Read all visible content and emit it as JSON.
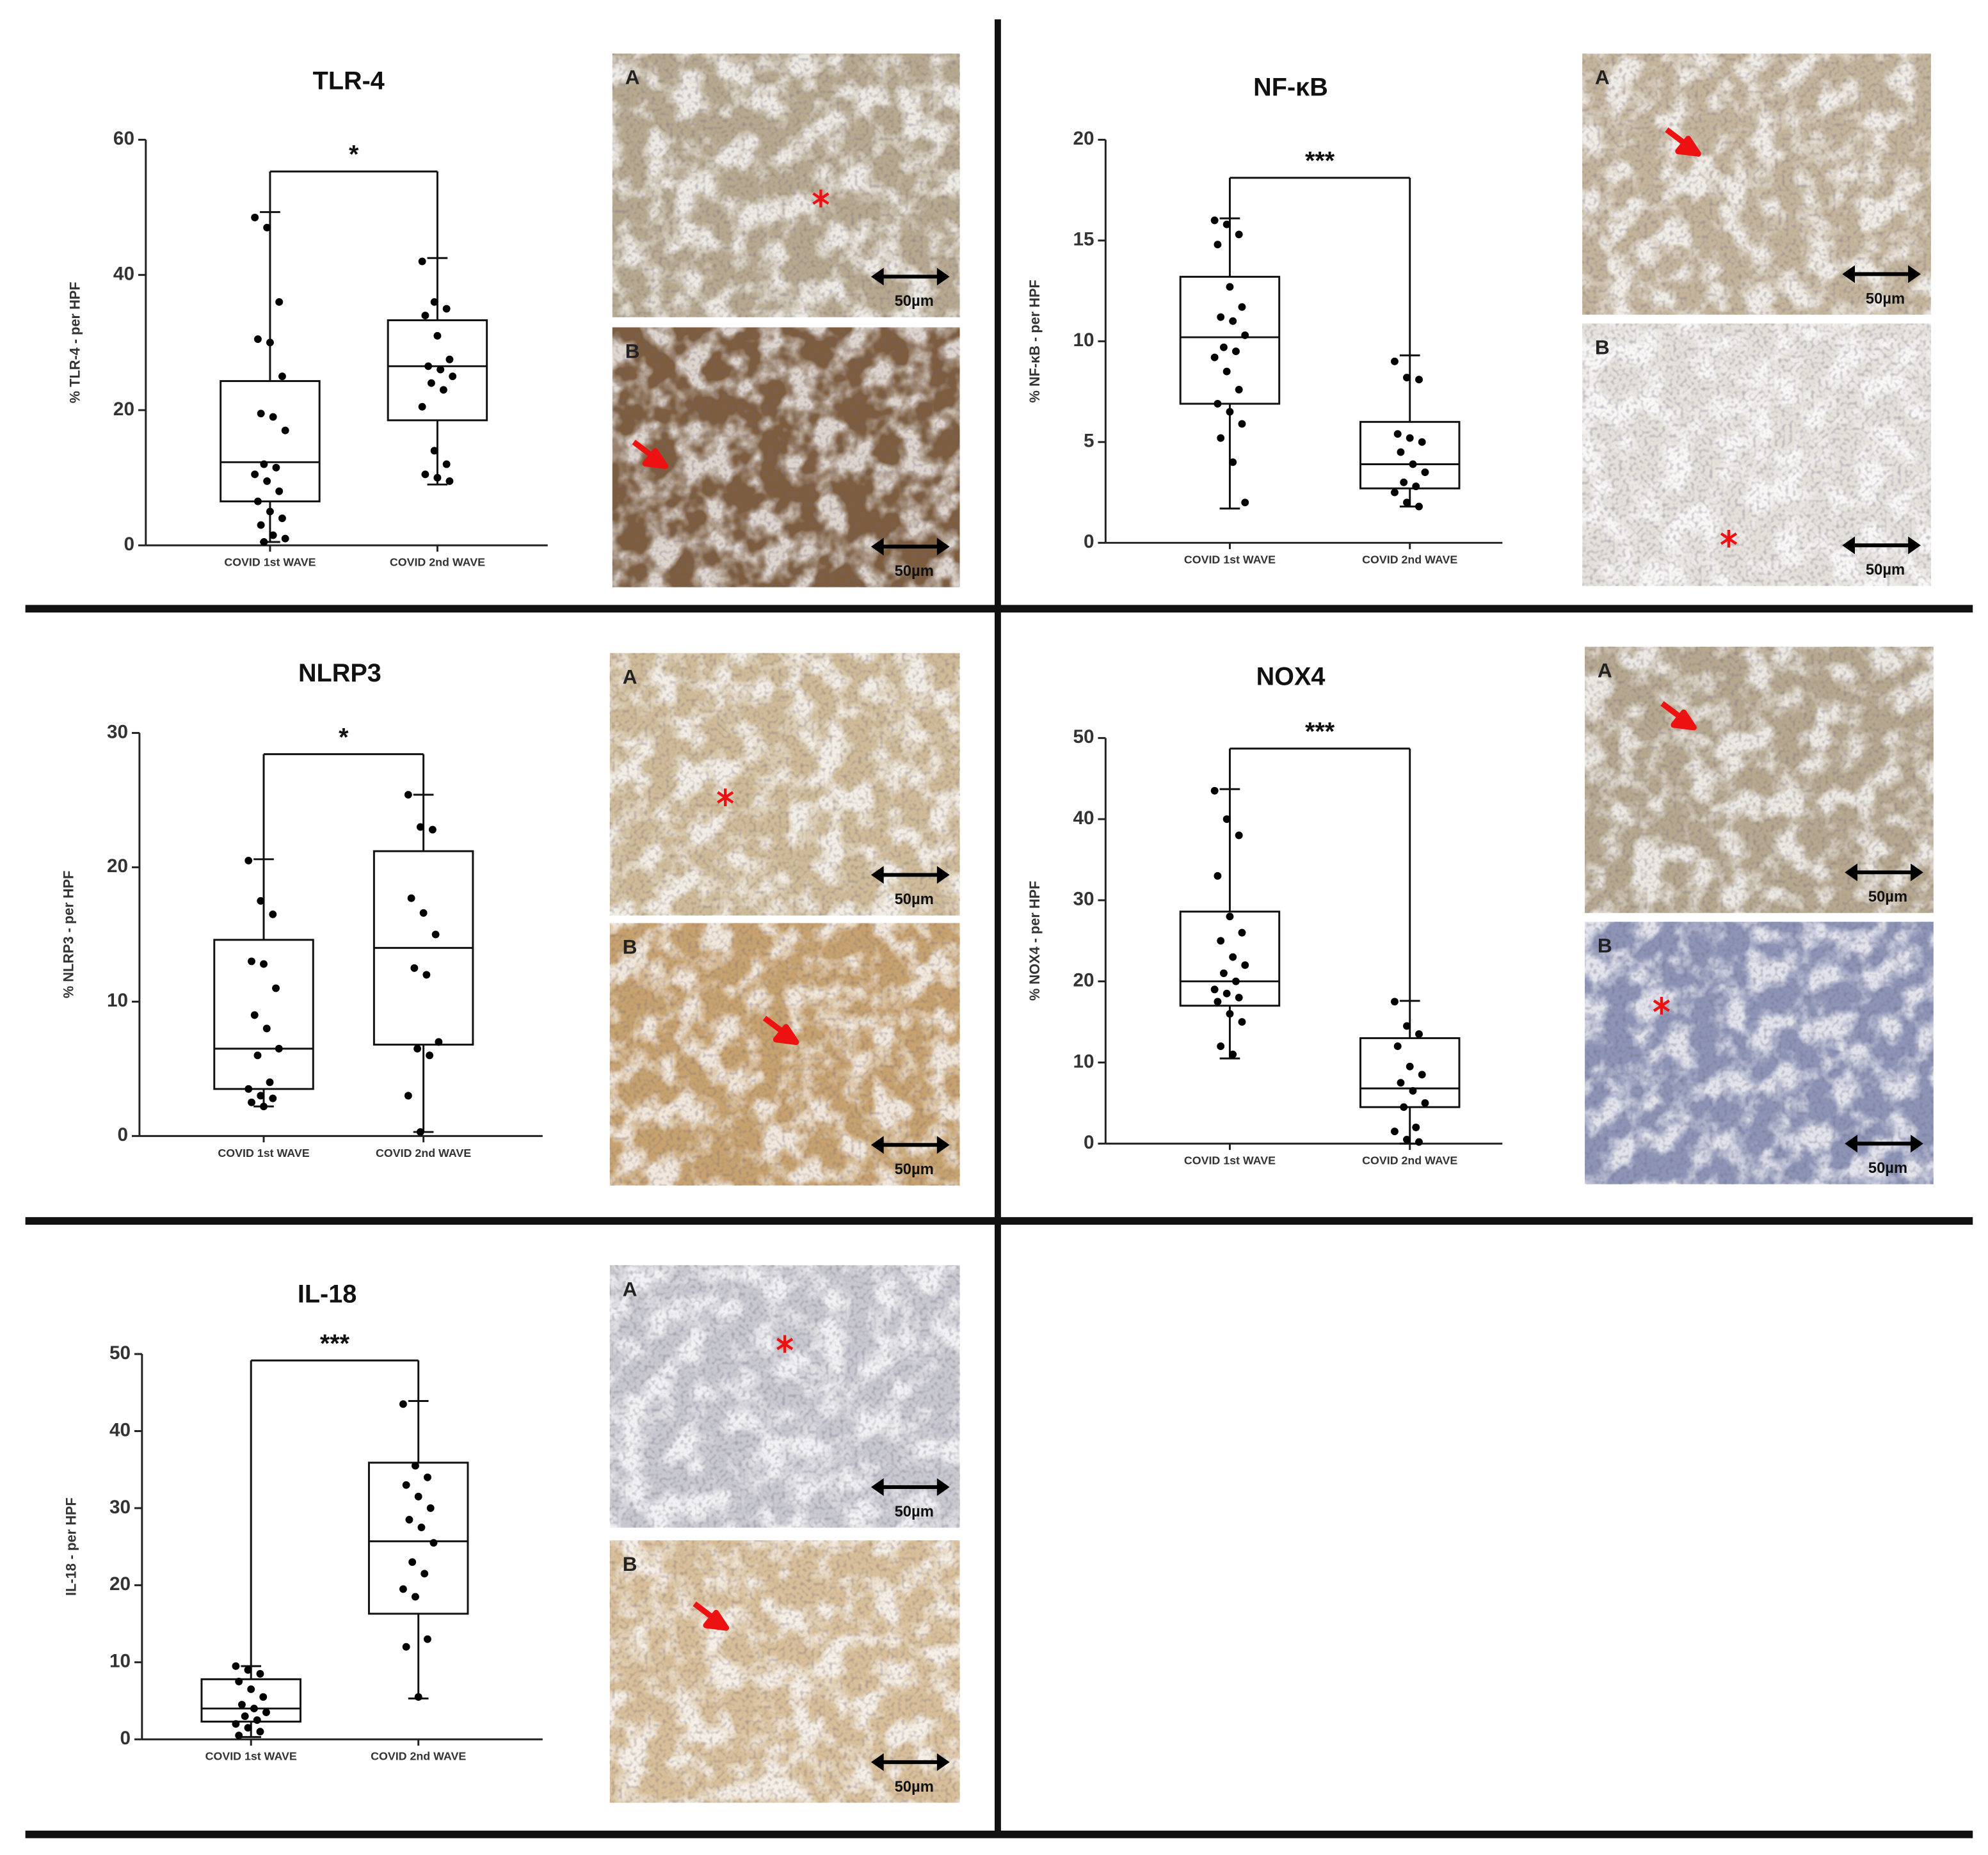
{
  "chart_data": [
    {
      "type": "box",
      "title": "TLR-4",
      "ylabel": "% TLR-4 - per HPF",
      "annotation": "*",
      "categories": [
        "COVID 1st WAVE",
        "COVID 2nd WAVE"
      ],
      "ylim": [
        0,
        60
      ],
      "yticks": [
        0,
        20,
        40,
        60
      ],
      "boxes": [
        {
          "min": 0.5,
          "q1": 6.5,
          "median": 12.3,
          "q3": 24.3,
          "max": 49.3,
          "points": [
            48.5,
            47,
            36,
            30.5,
            30,
            25,
            19.5,
            19,
            17,
            12,
            11.5,
            10.5,
            9.5,
            8,
            6.5,
            5,
            4,
            3,
            1.5,
            1,
            0.5
          ]
        },
        {
          "min": 9,
          "q1": 18.5,
          "median": 26.5,
          "q3": 33.3,
          "max": 42.5,
          "points": [
            42,
            36,
            35,
            34,
            31,
            27.5,
            26.5,
            26,
            25,
            24,
            23,
            20.5,
            14,
            12,
            10.5,
            10,
            9.5
          ]
        }
      ]
    },
    {
      "type": "box",
      "title": "NF-κB",
      "ylabel": "% NF-κB - per HPF",
      "annotation": "***",
      "categories": [
        "COVID 1st WAVE",
        "COVID 2nd WAVE"
      ],
      "ylim": [
        0,
        20
      ],
      "yticks": [
        0,
        5,
        10,
        15,
        20
      ],
      "boxes": [
        {
          "min": 1.7,
          "q1": 6.9,
          "median": 10.2,
          "q3": 13.2,
          "max": 16.1,
          "points": [
            16,
            15.8,
            15.3,
            14.8,
            12.7,
            11.7,
            11.2,
            11,
            10.3,
            9.7,
            9.5,
            9.2,
            8.5,
            7.6,
            6.9,
            6.5,
            5.9,
            5.2,
            4,
            2
          ]
        },
        {
          "min": 1.8,
          "q1": 2.7,
          "median": 3.9,
          "q3": 6,
          "max": 9.3,
          "points": [
            9,
            8.2,
            8.1,
            5.4,
            5.2,
            5,
            4.5,
            3.9,
            3.5,
            3,
            2.8,
            2.5,
            2,
            1.8
          ]
        }
      ]
    },
    {
      "type": "box",
      "title": "NLRP3",
      "ylabel": "% NLRP3 - per HPF",
      "annotation": "*",
      "categories": [
        "COVID 1st WAVE",
        "COVID 2nd WAVE"
      ],
      "ylim": [
        0,
        30
      ],
      "yticks": [
        0,
        10,
        20,
        30
      ],
      "boxes": [
        {
          "min": 2.2,
          "q1": 3.5,
          "median": 6.5,
          "q3": 14.6,
          "max": 20.6,
          "points": [
            20.5,
            17.5,
            16.5,
            13,
            12.8,
            11,
            9,
            8,
            6.5,
            6,
            4,
            3.5,
            3,
            2.8,
            2.5,
            2.2
          ]
        },
        {
          "min": 0.3,
          "q1": 6.8,
          "median": 14,
          "q3": 21.2,
          "max": 25.4,
          "points": [
            25.4,
            23,
            22.8,
            17.7,
            16.6,
            15,
            12.5,
            12,
            7,
            6.5,
            6,
            3,
            0.3
          ]
        }
      ]
    },
    {
      "type": "box",
      "title": "NOX4",
      "ylabel": "% NOX4 - per HPF",
      "annotation": "***",
      "categories": [
        "COVID 1st WAVE",
        "COVID 2nd WAVE"
      ],
      "ylim": [
        0,
        50
      ],
      "yticks": [
        0,
        10,
        20,
        30,
        40,
        50
      ],
      "boxes": [
        {
          "min": 10.5,
          "q1": 17,
          "median": 20,
          "q3": 28.6,
          "max": 43.7,
          "points": [
            43.5,
            40,
            38,
            33,
            28,
            26,
            25,
            23,
            22,
            21,
            20,
            19,
            18.5,
            18,
            17.5,
            16,
            15,
            12,
            11
          ]
        },
        {
          "min": 0,
          "q1": 4.5,
          "median": 6.8,
          "q3": 13,
          "max": 17.6,
          "points": [
            17.5,
            14.5,
            13.5,
            12,
            9.5,
            8.5,
            7.5,
            6.5,
            5,
            4.5,
            2,
            1.5,
            0.5,
            0.2
          ]
        }
      ]
    },
    {
      "type": "box",
      "title": "IL-18",
      "ylabel": "IL-18 - per HPF",
      "annotation": "***",
      "categories": [
        "COVID 1st WAVE",
        "COVID 2nd WAVE"
      ],
      "ylim": [
        0,
        50
      ],
      "yticks": [
        0,
        10,
        20,
        30,
        40,
        50
      ],
      "boxes": [
        {
          "min": 0.3,
          "q1": 2.3,
          "median": 4,
          "q3": 7.8,
          "max": 9.5,
          "points": [
            9.5,
            9,
            8.5,
            7.5,
            6.5,
            5.5,
            4.5,
            4,
            3.5,
            3,
            2.5,
            2,
            1.5,
            1,
            0.5
          ]
        },
        {
          "min": 5.3,
          "q1": 16.3,
          "median": 25.7,
          "q3": 35.9,
          "max": 43.9,
          "points": [
            43.5,
            35.5,
            34,
            33,
            31.5,
            30,
            28.5,
            27.5,
            25.5,
            23,
            21.5,
            19.5,
            18.5,
            13,
            12,
            5.5
          ]
        }
      ]
    }
  ],
  "micrographs": [
    {
      "panels": [
        {
          "label": "A",
          "scale": "50µm"
        },
        {
          "label": "B",
          "scale": "50µm"
        }
      ]
    },
    {
      "panels": [
        {
          "label": "A",
          "scale": "50µm"
        },
        {
          "label": "B",
          "scale": "50µm"
        }
      ]
    },
    {
      "panels": [
        {
          "label": "A",
          "scale": "50µm"
        },
        {
          "label": "B",
          "scale": "50µm"
        }
      ]
    },
    {
      "panels": [
        {
          "label": "A",
          "scale": "50µm"
        },
        {
          "label": "B",
          "scale": "50µm"
        }
      ]
    },
    {
      "panels": [
        {
          "label": "A",
          "scale": "50µm"
        },
        {
          "label": "B",
          "scale": "50µm"
        }
      ]
    }
  ]
}
